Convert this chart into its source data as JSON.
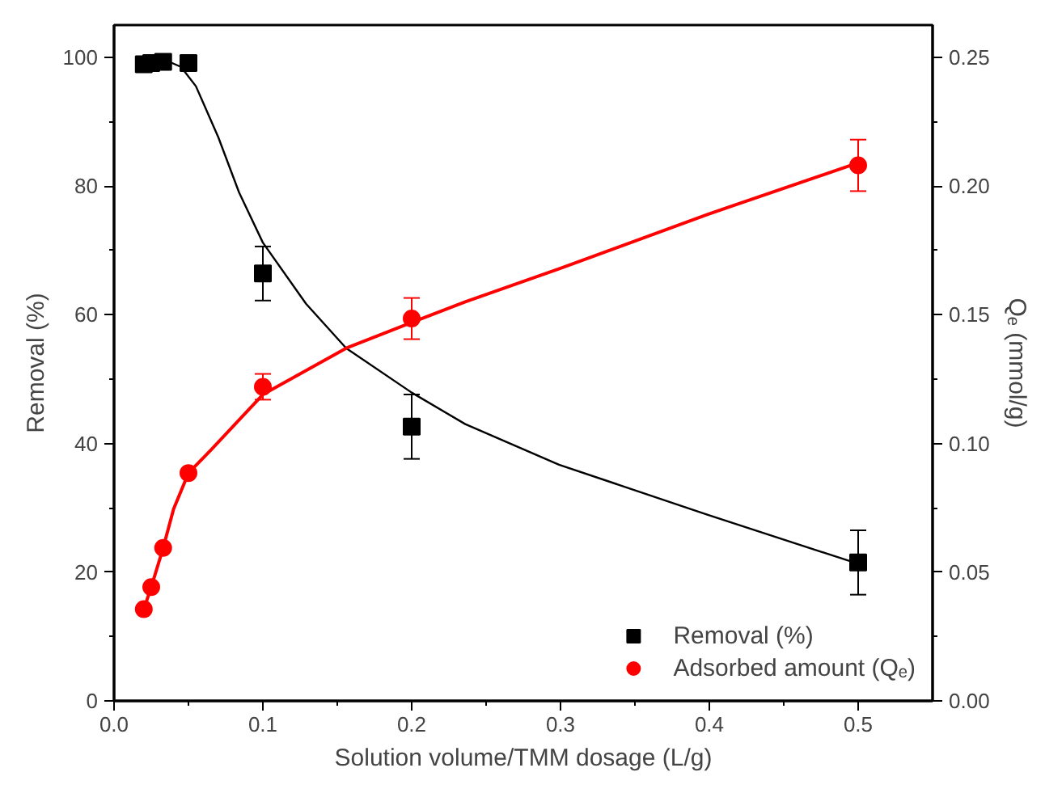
{
  "chart_data": {
    "type": "scatter",
    "xlabel": "Solution volume/TMM dosage (L/g)",
    "ylabel": "Removal (%)",
    "y2label": "Qₑ (mmol/g)",
    "xlim": [
      0,
      0.55
    ],
    "ylim": [
      0,
      105
    ],
    "y2lim": [
      0,
      0.2625
    ],
    "xticks": [
      {
        "value": 0,
        "label": "0.0"
      },
      {
        "value": 0.05,
        "label": null
      },
      {
        "value": 0.1,
        "label": "0.1"
      },
      {
        "value": 0.15,
        "label": null
      },
      {
        "value": 0.2,
        "label": "0.2"
      },
      {
        "value": 0.25,
        "label": null
      },
      {
        "value": 0.3,
        "label": "0.3"
      },
      {
        "value": 0.35,
        "label": null
      },
      {
        "value": 0.4,
        "label": "0.4"
      },
      {
        "value": 0.45,
        "label": null
      },
      {
        "value": 0.5,
        "label": "0.5"
      }
    ],
    "yticks": [
      0,
      {
        "value": 10,
        "label": null
      },
      20,
      {
        "value": 30,
        "label": null
      },
      40,
      {
        "value": 50,
        "label": null
      },
      60,
      {
        "value": 70,
        "label": null
      },
      80,
      {
        "value": 90,
        "label": null
      },
      100
    ],
    "y2ticks": [
      {
        "value": 0,
        "label": "0.00"
      },
      {
        "value": 0.025,
        "label": null
      },
      {
        "value": 0.05,
        "label": "0.05"
      },
      {
        "value": 0.075,
        "label": null
      },
      {
        "value": 0.1,
        "label": "0.10"
      },
      {
        "value": 0.125,
        "label": null
      },
      {
        "value": 0.15,
        "label": "0.15"
      },
      {
        "value": 0.175,
        "label": null
      },
      {
        "value": 0.2,
        "label": "0.20"
      },
      {
        "value": 0.225,
        "label": null
      },
      {
        "value": 0.25,
        "label": "0.25"
      }
    ],
    "x": [
      0.02,
      0.025,
      0.033,
      0.05,
      0.1,
      0.2,
      0.5
    ],
    "series": [
      {
        "name": "Removal (%)",
        "color": "#000000",
        "marker": "square",
        "values": [
          98.9,
          99.1,
          99.3,
          99.1,
          66.4,
          42.6,
          21.5
        ],
        "errors": [
          null,
          null,
          null,
          null,
          4.2,
          5,
          5
        ]
      },
      {
        "name": "Adsorbed amount (Qₑ)",
        "color": "#ff0000",
        "marker": "circle",
        "axis": "y2",
        "values": [
          0.0356,
          0.0442,
          0.0594,
          0.0885,
          0.122,
          0.1485,
          0.208
        ],
        "errors": [
          null,
          null,
          null,
          null,
          0.005,
          0.008,
          0.01
        ]
      },
      {
        "type": "line",
        "color": "#000000",
        "marker": "none",
        "x": [
          0.02,
          0.034,
          0.045,
          0.055,
          0.07,
          0.084,
          0.1,
          0.129,
          0.156,
          0.2,
          0.236,
          0.299,
          0.399,
          0.5
        ],
        "values": [
          99.3,
          99.6,
          98.5,
          95.5,
          87.6,
          79,
          71.2,
          61.7,
          54.8,
          47.9,
          43,
          36.7,
          28.9,
          21.3
        ]
      },
      {
        "type": "line",
        "color": "#ff0000",
        "marker": "none",
        "axis": "y2",
        "x": [
          0.02,
          0.025,
          0.033,
          0.04,
          0.05,
          0.066,
          0.1,
          0.156,
          0.2,
          0.236,
          0.3,
          0.399,
          0.5
        ],
        "values": [
          0.0356,
          0.0442,
          0.0594,
          0.0745,
          0.0885,
          0.098,
          0.119,
          0.137,
          0.147,
          0.155,
          0.168,
          0.189,
          0.209
        ]
      }
    ],
    "legend": "bottom right",
    "grid": false
  }
}
